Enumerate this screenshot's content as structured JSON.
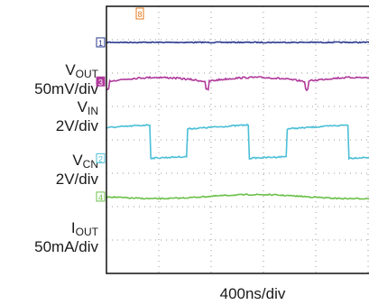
{
  "chart_data": {
    "type": "line",
    "title": "",
    "xlabel": "400ns/div",
    "ylabel": "",
    "grid": true,
    "divisions": {
      "x": 10,
      "y": 8
    },
    "series": [
      {
        "name": "V_IN",
        "label_main": "V",
        "label_sub": "IN",
        "label_scale": "2V/div",
        "channel": "1",
        "color": "#2b3a8f",
        "level_div": 1.08,
        "shape": "flat",
        "noise_div": 0.03
      },
      {
        "name": "V_OUT",
        "label_main": "V",
        "label_sub": "OUT",
        "label_scale": "50mV/div",
        "channel": "3",
        "color": "#b0399b",
        "level_div": 2.25,
        "shape": "ripple",
        "noise_div": 0.05,
        "period_div": 1.9,
        "amplitude_div": 0.12
      },
      {
        "name": "V_CN",
        "label_main": "V",
        "label_sub": "CN",
        "label_scale": "2V/div",
        "channel": "2",
        "color": "#4bbfd6",
        "high_div": 3.55,
        "low_div": 4.55,
        "shape": "square",
        "period_div": 1.9,
        "duty": 0.62
      },
      {
        "name": "I_OUT",
        "label_main": "I",
        "label_sub": "OUT",
        "label_scale": "50mA/div",
        "channel": "4",
        "color": "#6cc04a",
        "level_div": 5.7,
        "shape": "slow-wave",
        "noise_div": 0.035,
        "period_div": 3.8,
        "amplitude_div": 0.06
      }
    ],
    "trigger_marker": {
      "label": "8",
      "color": "#e57a1e"
    }
  }
}
